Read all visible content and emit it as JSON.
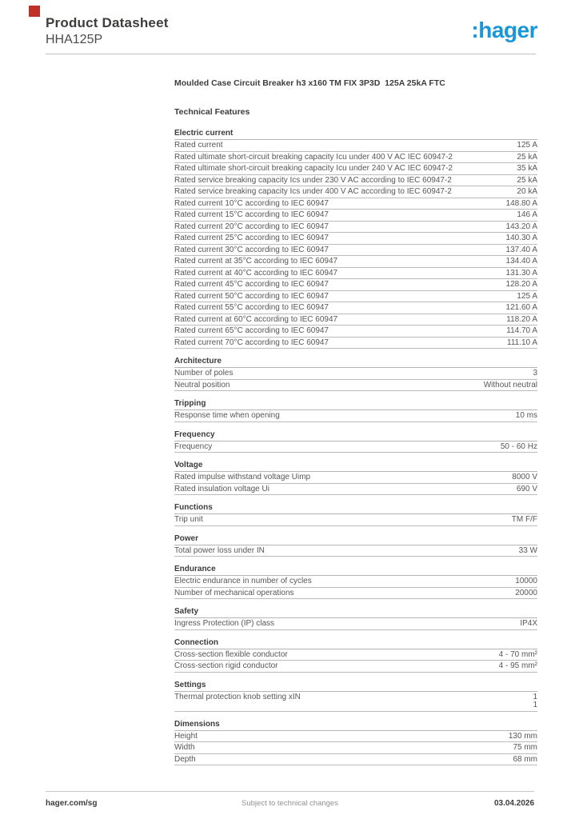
{
  "header": {
    "title": "Product Datasheet",
    "subtitle": "HHA125P",
    "logo_text": ":hager",
    "logo_color": "#1a97d4"
  },
  "decoration": {
    "corner_square_color": "#bf3128"
  },
  "product_title": "Moulded Case Circuit Breaker h3 x160 TM FIX 3P3D  125A 25kA FTC",
  "technical_features_heading": "Technical Features",
  "sections": [
    {
      "title": "Electric current",
      "rows": [
        {
          "label": "Rated current",
          "value": "125 A"
        },
        {
          "label": "Rated ultimate short-circuit breaking capacity Icu under 400 V AC IEC 60947-2",
          "value": "25 kA"
        },
        {
          "label": "Rated ultimate short-circuit breaking capacity Icu under 240 V AC IEC 60947-2",
          "value": "35 kA"
        },
        {
          "label": "Rated service breaking capacity Ics under 230 V AC according to IEC 60947-2",
          "value": "25 kA"
        },
        {
          "label": "Rated service breaking capacity Ics under 400 V AC according to IEC 60947-2",
          "value": "20 kA"
        },
        {
          "label": "Rated current 10°C according to IEC 60947",
          "value": "148.80 A"
        },
        {
          "label": "Rated current 15°C according to IEC 60947",
          "value": "146 A"
        },
        {
          "label": "Rated current 20°C according to IEC 60947",
          "value": "143.20 A"
        },
        {
          "label": "Rated current 25°C according to IEC 60947",
          "value": "140.30 A"
        },
        {
          "label": "Rated current 30°C according to IEC 60947",
          "value": "137.40 A"
        },
        {
          "label": "Rated current at 35°C according to IEC 60947",
          "value": "134.40 A"
        },
        {
          "label": "Rated current at 40°C according to IEC 60947",
          "value": "131.30 A"
        },
        {
          "label": "Rated current 45°C according to IEC 60947",
          "value": "128.20 A"
        },
        {
          "label": "Rated current 50°C according to IEC 60947",
          "value": "125 A"
        },
        {
          "label": "Rated current 55°C according to IEC 60947",
          "value": "121.60 A"
        },
        {
          "label": "Rated current at 60°C according to IEC 60947",
          "value": "118.20 A"
        },
        {
          "label": "Rated current 65°C according to IEC 60947",
          "value": "114.70 A"
        },
        {
          "label": "Rated current 70°C according to IEC 60947",
          "value": "111.10 A"
        }
      ]
    },
    {
      "title": "Architecture",
      "rows": [
        {
          "label": "Number of poles",
          "value": "3"
        },
        {
          "label": "Neutral position",
          "value": "Without neutral"
        }
      ]
    },
    {
      "title": "Tripping",
      "rows": [
        {
          "label": "Response time when opening",
          "value": "10 ms"
        }
      ]
    },
    {
      "title": "Frequency",
      "rows": [
        {
          "label": "Frequency",
          "value": "50 - 60 Hz"
        }
      ]
    },
    {
      "title": "Voltage",
      "rows": [
        {
          "label": "Rated impulse withstand voltage Uimp",
          "value": "8000 V"
        },
        {
          "label": "Rated insulation voltage Ui",
          "value": "690 V"
        }
      ]
    },
    {
      "title": "Functions",
      "rows": [
        {
          "label": "Trip unit",
          "value": "TM F/F"
        }
      ]
    },
    {
      "title": "Power",
      "rows": [
        {
          "label": "Total power loss under IN",
          "value": "33 W"
        }
      ]
    },
    {
      "title": "Endurance",
      "rows": [
        {
          "label": "Electric endurance in number of cycles",
          "value": "10000"
        },
        {
          "label": "Number of mechanical operations",
          "value": "20000"
        }
      ]
    },
    {
      "title": "Safety",
      "rows": [
        {
          "label": "Ingress Protection (IP) class",
          "value": "IP4X"
        }
      ]
    },
    {
      "title": "Connection",
      "rows": [
        {
          "label": "Cross-section flexible conductor",
          "value": "4 - 70 mm²"
        },
        {
          "label": "Cross-section rigid conductor",
          "value": "4 - 95 mm²"
        }
      ]
    },
    {
      "title": "Settings",
      "rows": [
        {
          "label": "Thermal protection knob setting xIN",
          "value": "1\n1"
        }
      ]
    },
    {
      "title": "Dimensions",
      "rows": [
        {
          "label": "Height",
          "value": "130 mm"
        },
        {
          "label": "Width",
          "value": "75 mm"
        },
        {
          "label": "Depth",
          "value": "68 mm"
        }
      ]
    }
  ],
  "footer": {
    "left": "hager.com/sg",
    "center": "Subject to technical changes",
    "right": "03.04.2026"
  }
}
